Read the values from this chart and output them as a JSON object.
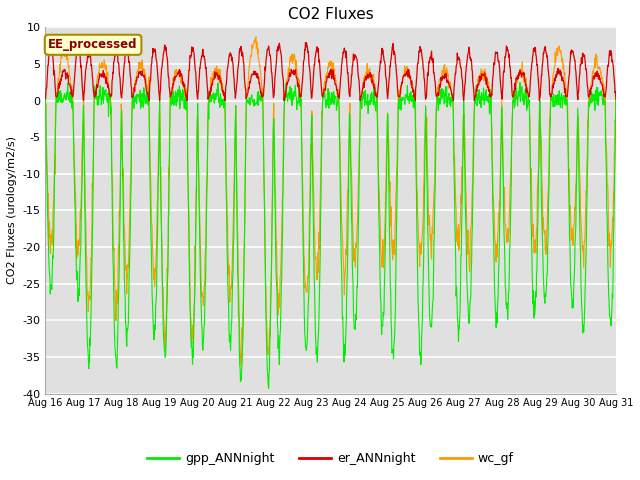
{
  "title": "CO2 Fluxes",
  "ylabel": "CO2 Fluxes (urology/m2/s)",
  "ylim": [
    -40,
    10
  ],
  "yticks": [
    10,
    5,
    0,
    -5,
    -10,
    -15,
    -20,
    -25,
    -30,
    -35,
    -40
  ],
  "xtick_labels": [
    "Aug 16",
    "Aug 17",
    "Aug 18",
    "Aug 19",
    "Aug 20",
    "Aug 21",
    "Aug 22",
    "Aug 23",
    "Aug 24",
    "Aug 25",
    "Aug 26",
    "Aug 27",
    "Aug 28",
    "Aug 29",
    "Aug 30",
    "Aug 31"
  ],
  "annotation_text": "EE_processed",
  "annotation_color": "#880000",
  "annotation_bg": "#ffffcc",
  "annotation_border": "#aa8800",
  "plot_bg_color": "#e0e0e0",
  "grid_color": "#ffffff",
  "colors": {
    "gpp_ANNnight": "#00ee00",
    "er_ANNnight": "#dd0000",
    "wc_gf": "#ff9900"
  },
  "legend_labels": [
    "gpp_ANNnight",
    "er_ANNnight",
    "wc_gf"
  ],
  "n_days": 15,
  "pts_per_day": 96,
  "gpp_day_peak": 0.5,
  "gpp_night_depths": [
    -26,
    -36,
    -32,
    -35,
    -33,
    -38,
    -34,
    -35,
    -31,
    -35,
    -31,
    -30,
    -29,
    -28,
    -31
  ],
  "er_night_peaks": [
    7.0,
    6.5,
    7.0,
    7.0,
    6.5,
    7.0,
    7.5,
    7.0,
    6.5,
    7.0,
    6.0,
    6.5,
    7.0,
    7.0,
    6.5
  ],
  "wc_night_depths": [
    -20,
    -28,
    -24,
    -32,
    -27,
    -35,
    -27,
    -24,
    -22,
    -21,
    -20,
    -21,
    -20,
    -20,
    -21
  ],
  "wc_day_peaks": [
    7,
    5,
    5,
    4,
    4,
    8,
    6,
    5,
    4,
    4,
    4,
    4,
    4,
    7,
    5
  ]
}
